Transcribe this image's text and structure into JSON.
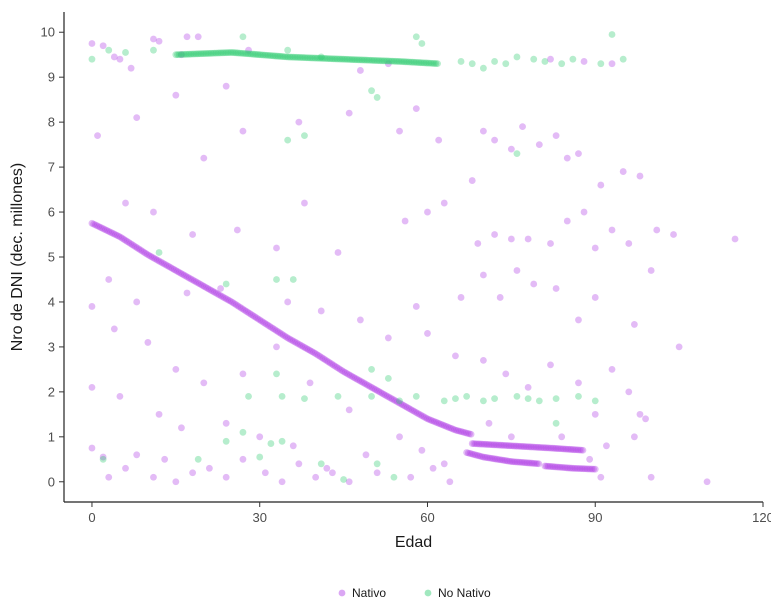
{
  "chart_data": {
    "type": "scatter",
    "title": "",
    "xlabel": "Edad",
    "ylabel": "Nro de DNI (dec. millones)",
    "xlim": [
      -5,
      120
    ],
    "ylim": [
      -0.45,
      10.45
    ],
    "x_ticks": [
      0,
      30,
      60,
      90,
      120
    ],
    "y_ticks": [
      0,
      1,
      2,
      3,
      4,
      5,
      6,
      7,
      8,
      9,
      10
    ],
    "grid": false,
    "legend_position": "bottom",
    "colors": {
      "Nativo": "#b03be6",
      "No Nativo": "#2ecc71"
    },
    "series": [
      {
        "name": "Nativo",
        "trend": {
          "segments": [
            {
              "x_start": 0,
              "x_end": 68,
              "points": [
                [
                  0,
                  5.75
                ],
                [
                  5,
                  5.45
                ],
                [
                  10,
                  5.05
                ],
                [
                  15,
                  4.7
                ],
                [
                  20,
                  4.35
                ],
                [
                  25,
                  4.0
                ],
                [
                  30,
                  3.6
                ],
                [
                  35,
                  3.2
                ],
                [
                  40,
                  2.85
                ],
                [
                  45,
                  2.45
                ],
                [
                  50,
                  2.1
                ],
                [
                  55,
                  1.75
                ],
                [
                  60,
                  1.4
                ],
                [
                  65,
                  1.15
                ],
                [
                  68,
                  1.05
                ]
              ]
            },
            {
              "x_start": 67,
              "x_end": 80,
              "points": [
                [
                  67,
                  0.65
                ],
                [
                  70,
                  0.55
                ],
                [
                  75,
                  0.45
                ],
                [
                  80,
                  0.4
                ]
              ]
            },
            {
              "x_start": 68,
              "x_end": 88,
              "points": [
                [
                  68,
                  0.85
                ],
                [
                  75,
                  0.8
                ],
                [
                  82,
                  0.75
                ],
                [
                  88,
                  0.7
                ]
              ]
            },
            {
              "x_start": 81,
              "x_end": 90,
              "points": [
                [
                  81,
                  0.35
                ],
                [
                  86,
                  0.3
                ],
                [
                  90,
                  0.28
                ]
              ]
            }
          ]
        },
        "points": [
          [
            0,
            9.75
          ],
          [
            2,
            9.7
          ],
          [
            4,
            9.45
          ],
          [
            5,
            9.4
          ],
          [
            7,
            9.2
          ],
          [
            11,
            9.85
          ],
          [
            12,
            9.8
          ],
          [
            16,
            9.5
          ],
          [
            17,
            9.9
          ],
          [
            19,
            9.9
          ],
          [
            24,
            8.8
          ],
          [
            28,
            9.6
          ],
          [
            48,
            9.15
          ],
          [
            53,
            9.3
          ],
          [
            82,
            9.4
          ],
          [
            88,
            9.35
          ],
          [
            93,
            9.3
          ],
          [
            1,
            7.7
          ],
          [
            8,
            8.1
          ],
          [
            15,
            8.6
          ],
          [
            20,
            7.2
          ],
          [
            27,
            7.8
          ],
          [
            37,
            8.0
          ],
          [
            46,
            8.2
          ],
          [
            55,
            7.8
          ],
          [
            58,
            8.3
          ],
          [
            62,
            7.6
          ],
          [
            68,
            6.7
          ],
          [
            70,
            7.8
          ],
          [
            72,
            7.6
          ],
          [
            75,
            7.4
          ],
          [
            77,
            7.9
          ],
          [
            80,
            7.5
          ],
          [
            83,
            7.7
          ],
          [
            85,
            7.2
          ],
          [
            87,
            7.3
          ],
          [
            91,
            6.6
          ],
          [
            95,
            6.9
          ],
          [
            98,
            6.8
          ],
          [
            6,
            6.2
          ],
          [
            11,
            6.0
          ],
          [
            18,
            5.5
          ],
          [
            26,
            5.6
          ],
          [
            33,
            5.2
          ],
          [
            38,
            6.2
          ],
          [
            44,
            5.1
          ],
          [
            56,
            5.8
          ],
          [
            60,
            6.0
          ],
          [
            63,
            6.2
          ],
          [
            69,
            5.3
          ],
          [
            72,
            5.5
          ],
          [
            75,
            5.4
          ],
          [
            78,
            5.4
          ],
          [
            82,
            5.3
          ],
          [
            85,
            5.8
          ],
          [
            88,
            6.0
          ],
          [
            90,
            5.2
          ],
          [
            93,
            5.6
          ],
          [
            96,
            5.3
          ],
          [
            101,
            5.6
          ],
          [
            104,
            5.5
          ],
          [
            115,
            5.4
          ],
          [
            3,
            4.5
          ],
          [
            8,
            4.0
          ],
          [
            17,
            4.2
          ],
          [
            23,
            4.3
          ],
          [
            35,
            4.0
          ],
          [
            41,
            3.8
          ],
          [
            48,
            3.6
          ],
          [
            58,
            3.9
          ],
          [
            66,
            4.1
          ],
          [
            70,
            4.6
          ],
          [
            73,
            4.1
          ],
          [
            76,
            4.7
          ],
          [
            79,
            4.4
          ],
          [
            83,
            4.3
          ],
          [
            87,
            3.6
          ],
          [
            90,
            4.1
          ],
          [
            97,
            3.5
          ],
          [
            100,
            4.7
          ],
          [
            105,
            3.0
          ],
          [
            0,
            3.9
          ],
          [
            4,
            3.4
          ],
          [
            10,
            3.1
          ],
          [
            15,
            2.5
          ],
          [
            20,
            2.2
          ],
          [
            27,
            2.4
          ],
          [
            33,
            3.0
          ],
          [
            39,
            2.2
          ],
          [
            46,
            1.6
          ],
          [
            53,
            3.2
          ],
          [
            60,
            3.3
          ],
          [
            65,
            2.8
          ],
          [
            70,
            2.7
          ],
          [
            74,
            2.4
          ],
          [
            78,
            2.1
          ],
          [
            82,
            2.6
          ],
          [
            87,
            2.2
          ],
          [
            90,
            1.5
          ],
          [
            93,
            2.5
          ],
          [
            96,
            2.0
          ],
          [
            98,
            1.5
          ],
          [
            99,
            1.4
          ],
          [
            0,
            2.1
          ],
          [
            5,
            1.9
          ],
          [
            12,
            1.5
          ],
          [
            16,
            1.2
          ],
          [
            24,
            1.3
          ],
          [
            30,
            1.0
          ],
          [
            36,
            0.8
          ],
          [
            42,
            0.3
          ],
          [
            49,
            0.6
          ],
          [
            55,
            1.0
          ],
          [
            59,
            0.7
          ],
          [
            63,
            0.4
          ],
          [
            71,
            1.3
          ],
          [
            75,
            1.0
          ],
          [
            84,
            1.0
          ],
          [
            92,
            0.8
          ],
          [
            97,
            1.0
          ],
          [
            100,
            0.1
          ],
          [
            110,
            0.0
          ],
          [
            0,
            0.75
          ],
          [
            2,
            0.55
          ],
          [
            3,
            0.1
          ],
          [
            6,
            0.3
          ],
          [
            8,
            0.6
          ],
          [
            11,
            0.1
          ],
          [
            13,
            0.5
          ],
          [
            15,
            0.0
          ],
          [
            18,
            0.2
          ],
          [
            21,
            0.3
          ],
          [
            24,
            0.1
          ],
          [
            27,
            0.5
          ],
          [
            31,
            0.2
          ],
          [
            34,
            0.0
          ],
          [
            37,
            0.4
          ],
          [
            40,
            0.1
          ],
          [
            43,
            0.2
          ],
          [
            46,
            0.0
          ],
          [
            51,
            0.2
          ],
          [
            57,
            0.1
          ],
          [
            61,
            0.3
          ],
          [
            64,
            0.0
          ],
          [
            89,
            0.5
          ],
          [
            91,
            0.1
          ]
        ]
      },
      {
        "name": "No Nativo",
        "trend": {
          "segments": [
            {
              "x_start": 15,
              "x_end": 62,
              "points": [
                [
                  15,
                  9.5
                ],
                [
                  25,
                  9.55
                ],
                [
                  35,
                  9.45
                ],
                [
                  45,
                  9.4
                ],
                [
                  55,
                  9.35
                ],
                [
                  62,
                  9.3
                ]
              ]
            }
          ]
        },
        "points": [
          [
            0,
            9.4
          ],
          [
            3,
            9.6
          ],
          [
            6,
            9.55
          ],
          [
            11,
            9.6
          ],
          [
            27,
            9.9
          ],
          [
            35,
            9.6
          ],
          [
            41,
            9.45
          ],
          [
            50,
            8.7
          ],
          [
            51,
            8.55
          ],
          [
            58,
            9.9
          ],
          [
            59,
            9.75
          ],
          [
            66,
            9.35
          ],
          [
            68,
            9.3
          ],
          [
            70,
            9.2
          ],
          [
            72,
            9.35
          ],
          [
            74,
            9.3
          ],
          [
            76,
            9.45
          ],
          [
            79,
            9.4
          ],
          [
            81,
            9.35
          ],
          [
            84,
            9.3
          ],
          [
            86,
            9.4
          ],
          [
            91,
            9.3
          ],
          [
            93,
            9.95
          ],
          [
            95,
            9.4
          ],
          [
            12,
            5.1
          ],
          [
            35,
            7.6
          ],
          [
            38,
            7.7
          ],
          [
            76,
            7.3
          ],
          [
            24,
            4.4
          ],
          [
            33,
            4.5
          ],
          [
            36,
            4.5
          ],
          [
            33,
            2.4
          ],
          [
            50,
            2.5
          ],
          [
            53,
            2.3
          ],
          [
            28,
            1.9
          ],
          [
            34,
            1.9
          ],
          [
            38,
            1.85
          ],
          [
            44,
            1.9
          ],
          [
            50,
            1.9
          ],
          [
            55,
            1.8
          ],
          [
            58,
            1.9
          ],
          [
            63,
            1.8
          ],
          [
            65,
            1.85
          ],
          [
            67,
            1.9
          ],
          [
            70,
            1.8
          ],
          [
            72,
            1.85
          ],
          [
            76,
            1.9
          ],
          [
            78,
            1.85
          ],
          [
            80,
            1.8
          ],
          [
            83,
            1.85
          ],
          [
            87,
            1.9
          ],
          [
            90,
            1.8
          ],
          [
            2,
            0.5
          ],
          [
            19,
            0.5
          ],
          [
            24,
            0.9
          ],
          [
            27,
            1.1
          ],
          [
            32,
            0.85
          ],
          [
            34,
            0.9
          ],
          [
            30,
            0.55
          ],
          [
            41,
            0.4
          ],
          [
            45,
            0.05
          ],
          [
            51,
            0.4
          ],
          [
            54,
            0.1
          ],
          [
            83,
            1.3
          ]
        ]
      }
    ]
  }
}
